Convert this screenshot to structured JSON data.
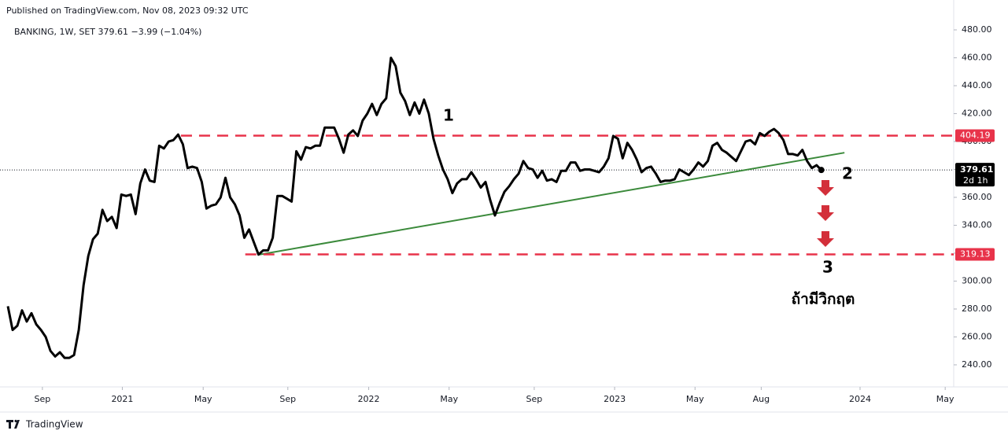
{
  "chart_data": {
    "type": "line",
    "title": "Published on TradingView.com, Nov 08, 2023 09:32 UTC",
    "subtitle": "BANKING, 1W, SET  379.61  −3.99 (−1.04%)",
    "brand": "TradingView",
    "color": "#000000",
    "values": [
      282,
      265,
      268,
      279,
      271,
      277,
      269,
      265,
      260,
      250,
      246,
      249,
      245,
      245,
      247,
      265,
      297,
      318,
      330,
      334,
      351,
      343,
      346,
      338,
      362,
      361,
      362,
      348,
      370,
      380,
      372,
      371,
      397,
      395,
      400,
      401,
      405,
      398,
      381,
      382,
      381,
      371,
      352,
      354,
      355,
      360,
      374,
      360,
      355,
      347,
      331,
      337,
      328,
      319,
      322,
      322,
      331,
      361,
      361,
      359,
      357,
      393,
      387,
      396,
      395,
      397,
      397,
      410,
      410,
      410,
      402,
      392,
      405,
      408,
      404,
      415,
      420,
      427,
      419,
      427,
      431,
      460,
      454,
      435,
      429,
      419,
      428,
      420,
      430,
      420,
      402,
      390,
      380,
      373,
      363,
      370,
      373,
      373,
      378,
      373,
      367,
      371,
      358,
      347,
      356,
      364,
      368,
      373,
      377,
      386,
      381,
      380,
      374,
      379,
      372,
      373,
      371,
      379,
      379,
      385,
      385,
      379,
      380,
      380,
      379,
      378,
      382,
      388,
      404,
      402,
      388,
      399,
      394,
      387,
      378,
      381,
      382,
      377,
      371,
      372,
      372,
      373,
      380,
      378,
      376,
      380,
      385,
      382,
      386,
      397,
      399,
      394,
      392,
      389,
      386,
      393,
      400,
      401,
      398,
      406,
      404,
      407,
      409,
      406,
      401,
      391,
      391,
      390,
      394,
      386,
      381,
      383,
      379.61
    ],
    "xlim": [
      0,
      200
    ],
    "xticks": [
      {
        "value": 7.3,
        "label": "Sep"
      },
      {
        "value": 24.2,
        "label": "2021"
      },
      {
        "value": 41.3,
        "label": "May"
      },
      {
        "value": 59.2,
        "label": "Sep"
      },
      {
        "value": 76.3,
        "label": "2022"
      },
      {
        "value": 93.3,
        "label": "May"
      },
      {
        "value": 111.3,
        "label": "Sep"
      },
      {
        "value": 128.3,
        "label": "2023"
      },
      {
        "value": 145.3,
        "label": "May"
      },
      {
        "value": 159.3,
        "label": "Aug"
      },
      {
        "value": 180.2,
        "label": "2024"
      },
      {
        "value": 198.2,
        "label": "May"
      }
    ],
    "ylim": [
      224.2,
      501.4
    ],
    "yticks": [
      {
        "value": 240,
        "label": "240.00"
      },
      {
        "value": 260,
        "label": "260.00"
      },
      {
        "value": 280,
        "label": "280.00"
      },
      {
        "value": 300,
        "label": "300.00"
      },
      {
        "value": 320,
        "label": "320.00"
      },
      {
        "value": 340,
        "label": "340.00"
      },
      {
        "value": 360,
        "label": "360.00"
      },
      {
        "value": 380,
        "label": "380.00"
      },
      {
        "value": 400,
        "label": "400.00"
      },
      {
        "value": 420,
        "label": "420.00"
      },
      {
        "value": 440,
        "label": "440.00"
      },
      {
        "value": 460,
        "label": "460.00"
      },
      {
        "value": 480,
        "label": "480.00"
      }
    ],
    "grid": false,
    "levels": [
      {
        "value": 404.19,
        "start": 36.6,
        "color": "#e8334a"
      },
      {
        "value": 319.13,
        "start": 50.2,
        "color": "#e8334a"
      }
    ],
    "last_price": {
      "value": 379.61,
      "countdown": "2d 1h"
    },
    "trendline": {
      "x": [
        53.2,
        176.9
      ],
      "y": [
        319,
        392
      ],
      "color": "#3b8a3b"
    },
    "annotations": [
      "1",
      "2",
      "3",
      "ถ้ามีวิกฤต"
    ]
  }
}
